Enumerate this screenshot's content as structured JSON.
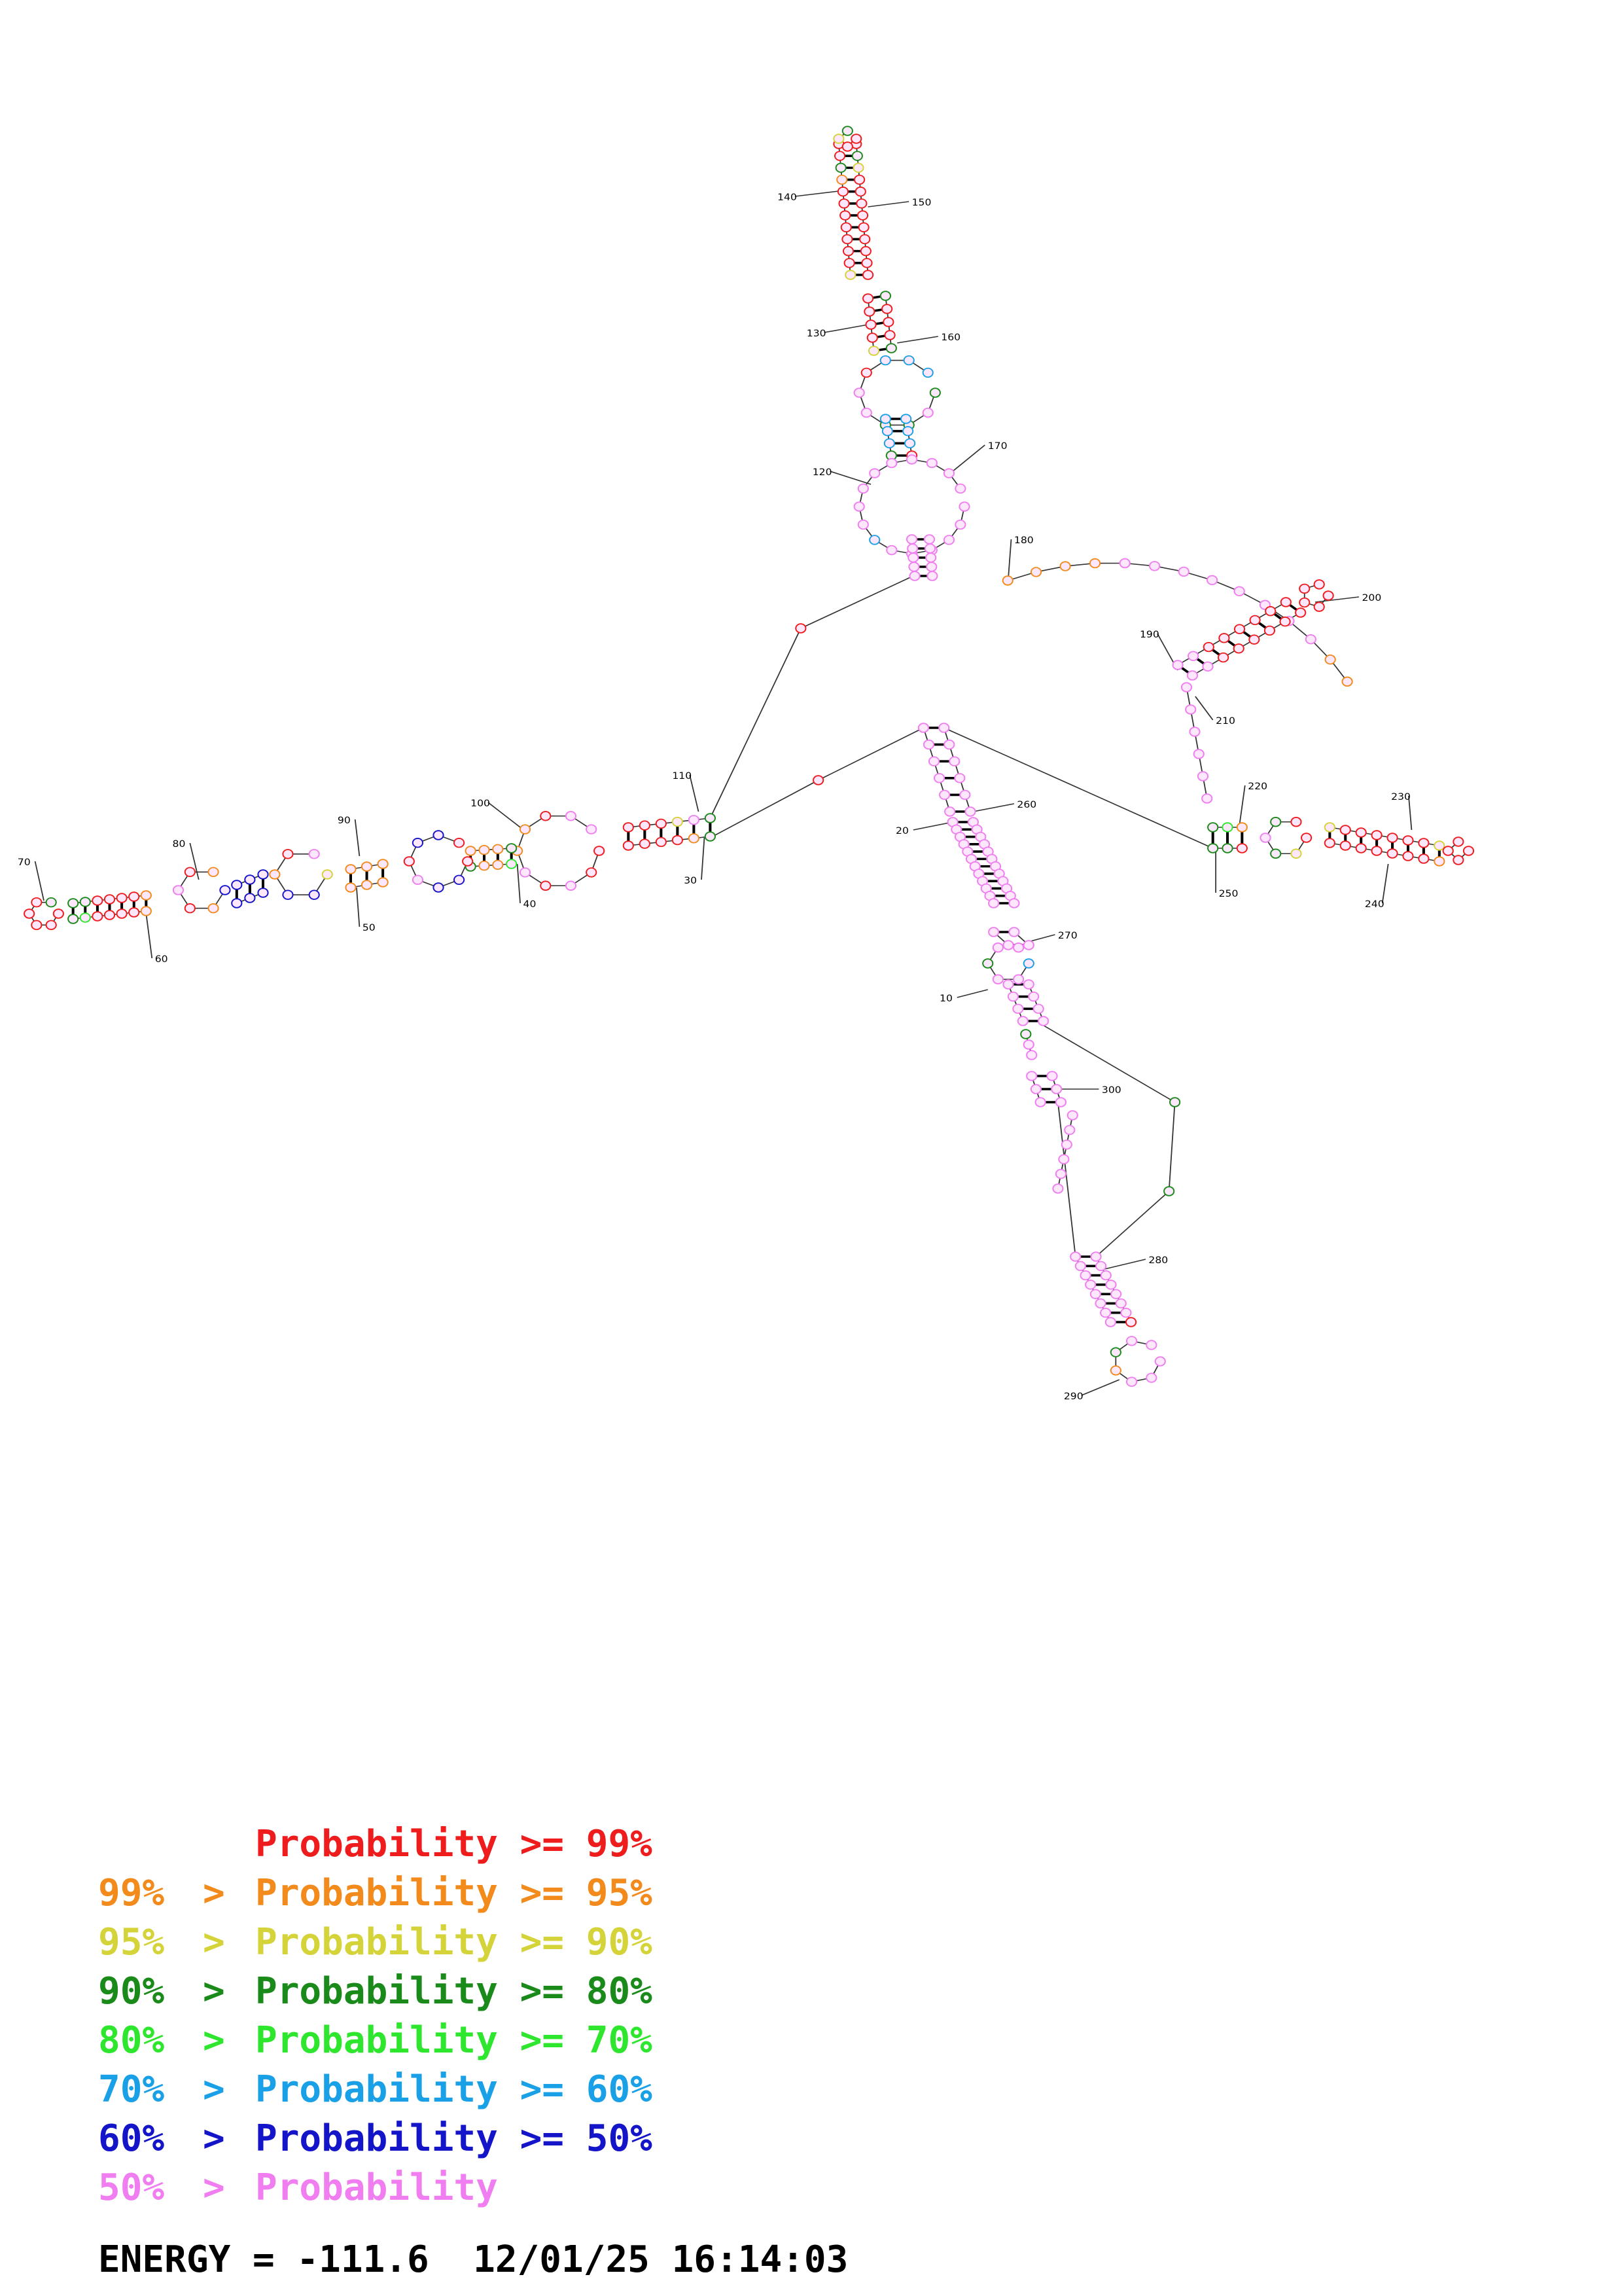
{
  "legend": [
    {
      "prefix": "",
      "text": "Probability >= 99%",
      "color": "#ee1c1c"
    },
    {
      "prefix": "99%",
      "text": "Probability >= 95%",
      "color": "#f28a1c"
    },
    {
      "prefix": "95%",
      "text": "Probability >= 90%",
      "color": "#d4d43a"
    },
    {
      "prefix": "90%",
      "text": "Probability >= 80%",
      "color": "#1a8a1a"
    },
    {
      "prefix": "80%",
      "text": "Probability >= 70%",
      "color": "#2ee62e"
    },
    {
      "prefix": "70%",
      "text": "Probability >= 60%",
      "color": "#1aa0e6"
    },
    {
      "prefix": "60%",
      "text": "Probability >= 50%",
      "color": "#1414c8"
    },
    {
      "prefix": "50%",
      "text": "Probability",
      "color": "#f07ef0"
    }
  ],
  "legend_separator": ">",
  "energy_line": "ENERGY = -111.6  12/01/25 16:14:03",
  "position_labels": [
    "10",
    "20",
    "30",
    "40",
    "50",
    "60",
    "70",
    "80",
    "90",
    "100",
    "110",
    "120",
    "130",
    "140",
    "150",
    "160",
    "170",
    "180",
    "190",
    "200",
    "210",
    "220",
    "230",
    "240",
    "250",
    "260",
    "270",
    "280",
    "290",
    "300"
  ]
}
